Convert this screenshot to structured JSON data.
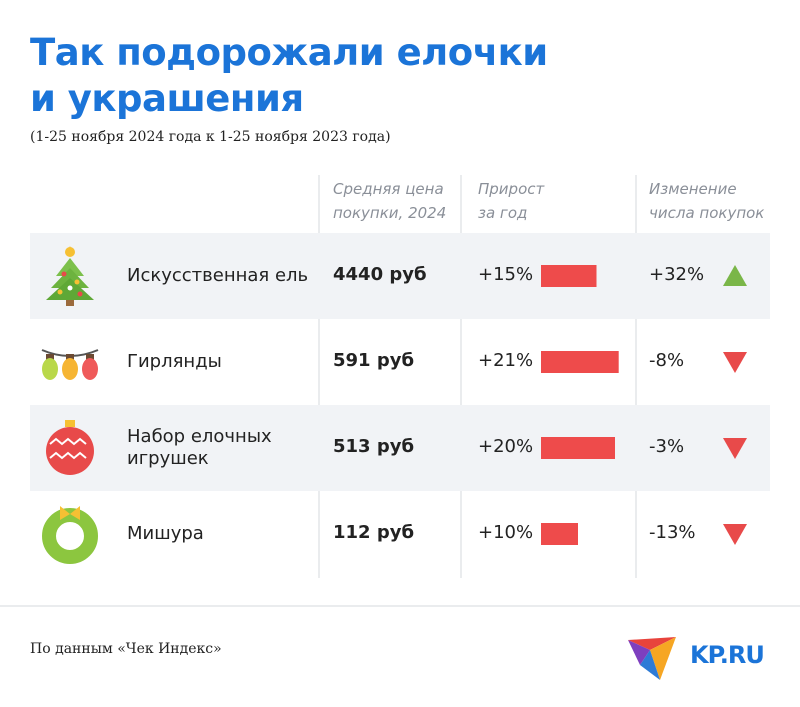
{
  "header": {
    "title": "Так подорожали елочки\nи украшения",
    "subtitle": "(1-25 ноября 2024 года к 1-25 ноября 2023 года)"
  },
  "table": {
    "columns": [
      "Средняя цена\nпокупки, 2024",
      "Прирост\nза год",
      "Изменение\nчисла покупок"
    ],
    "rows": [
      {
        "name": "Искусственная ель",
        "price": "4440 руб",
        "growth": 15,
        "growth_label": "+15%",
        "change": 32,
        "change_label": "+32%"
      },
      {
        "name": "Гирлянды",
        "price": "591 руб",
        "growth": 21,
        "growth_label": "+21%",
        "change": -8,
        "change_label": "-8%"
      },
      {
        "name": "Набор елочных игрушек",
        "price": "513 руб",
        "growth": 20,
        "growth_label": "+20%",
        "change": -3,
        "change_label": "-3%"
      },
      {
        "name": "Мишура",
        "price": "112 руб",
        "growth": 10,
        "growth_label": "+10%",
        "change": -13,
        "change_label": "-13%"
      }
    ]
  },
  "footer": {
    "source": "По данным «Чек Индекс»",
    "logo": "KP.RU"
  }
}
